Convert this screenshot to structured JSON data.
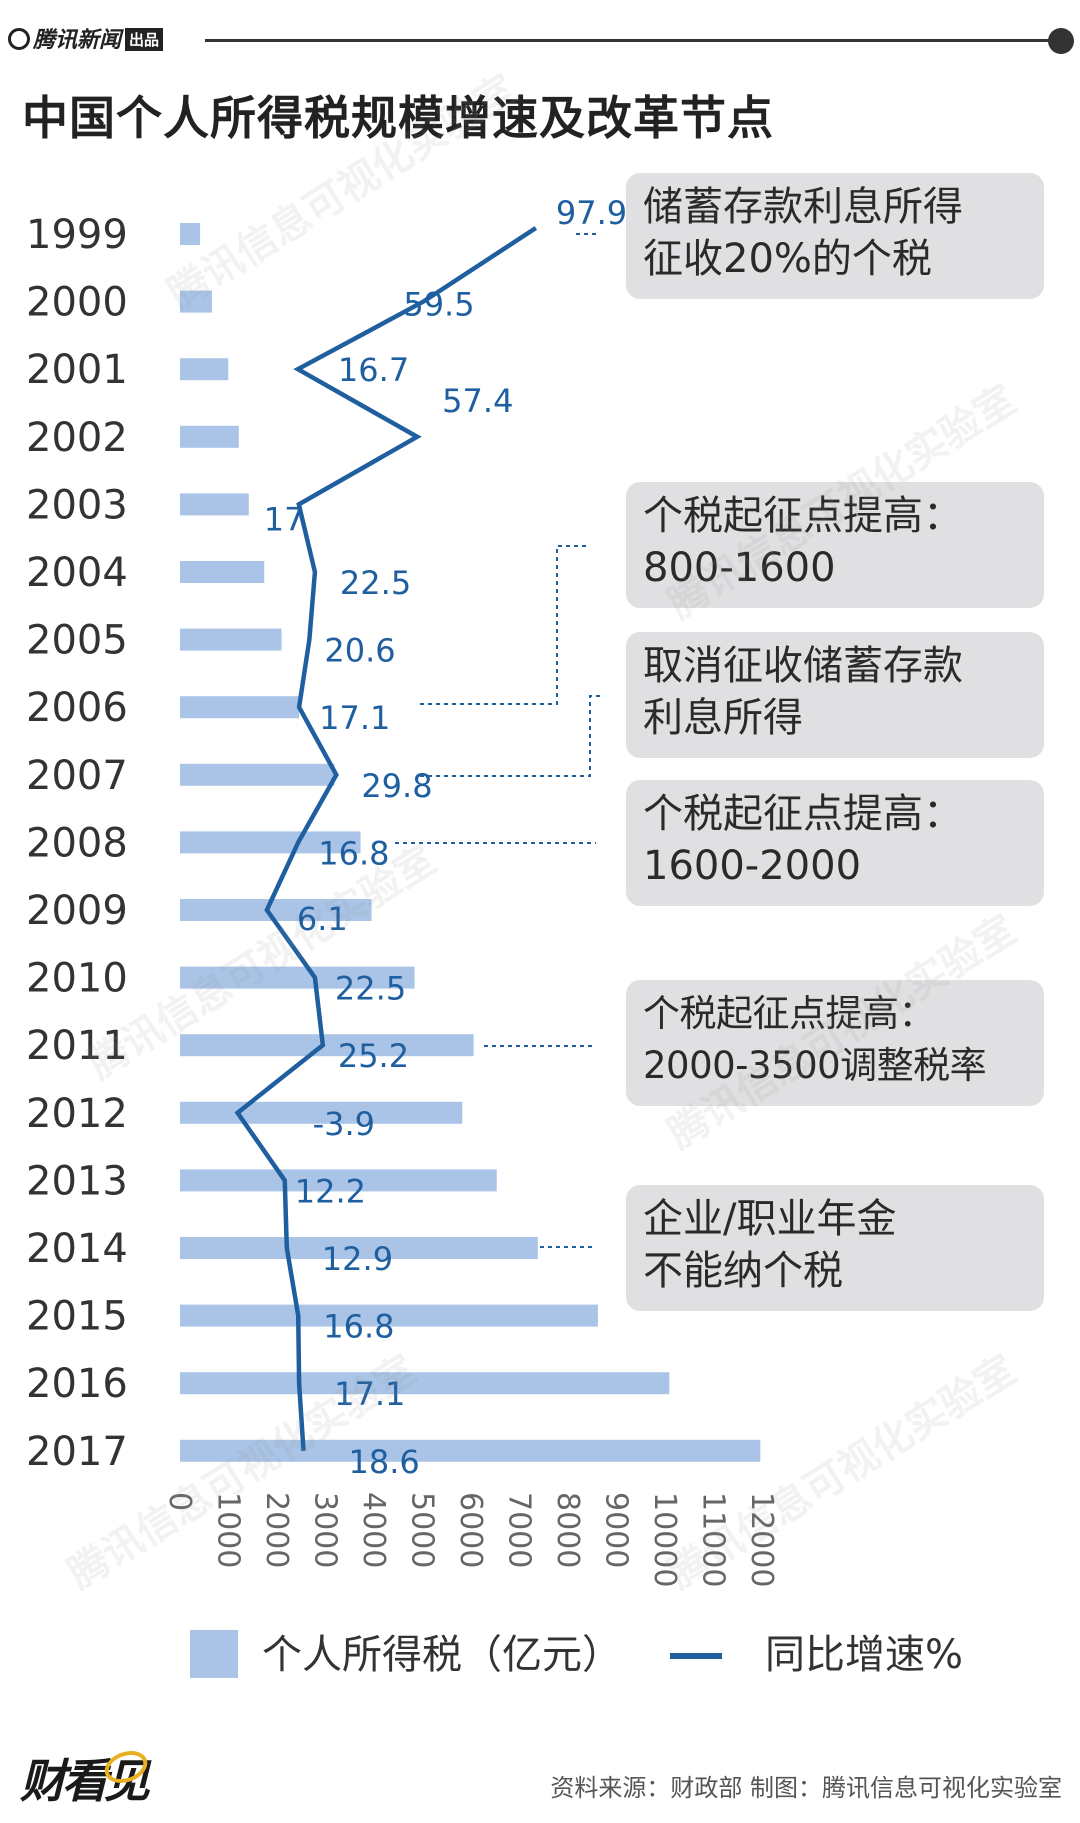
{
  "header": {
    "brand": "腾讯新闻",
    "brand_badge": "出品",
    "title": "中国个人所得税规模增速及改革节点"
  },
  "chart_data": {
    "type": "bar",
    "orientation": "horizontal",
    "title": "中国个人所得税规模增速及改革节点",
    "categories": [
      "1999",
      "2000",
      "2001",
      "2002",
      "2003",
      "2004",
      "2005",
      "2006",
      "2007",
      "2008",
      "2009",
      "2010",
      "2011",
      "2012",
      "2013",
      "2014",
      "2015",
      "2016",
      "2017"
    ],
    "series": [
      {
        "name": "个人所得税（亿元）",
        "type": "bar",
        "color": "#a9c4e6",
        "values": [
          414,
          660,
          995,
          1212,
          1418,
          1737,
          2094,
          2454,
          3186,
          3722,
          3949,
          4837,
          6054,
          5820,
          6531,
          7377,
          8617,
          10089,
          11966
        ]
      },
      {
        "name": "同比增速%",
        "type": "line",
        "color": "#1f5fa0",
        "values": [
          97.9,
          59.5,
          16.7,
          57.4,
          17,
          22.5,
          20.6,
          17.1,
          29.8,
          16.8,
          6.1,
          22.5,
          25.2,
          -3.9,
          12.2,
          12.9,
          16.8,
          17.1,
          18.6
        ],
        "labels": [
          "97.9",
          "59.5",
          "16.7",
          "57.4",
          "17",
          "22.5",
          "20.6",
          "17.1",
          "29.8",
          "16.8",
          "6.1",
          "22.5",
          "25.2",
          "-3.9",
          "12.2",
          "12.9",
          "16.8",
          "17.1",
          "18.6"
        ]
      }
    ],
    "x_ticks": [
      "0",
      "1000",
      "2000",
      "3000",
      "4000",
      "5000",
      "6000",
      "7000",
      "8000",
      "9000",
      "10000",
      "11000",
      "12000"
    ],
    "xlim": [
      0,
      12000
    ],
    "grid": false,
    "legend": "bottom",
    "annotations": [
      {
        "year": "1999",
        "text": "储蓄存款利息所得\n征收20%的个税"
      },
      {
        "year": "2006",
        "text": "个税起征点提高：\n800-1600"
      },
      {
        "year": "2007",
        "text": "取消征收储蓄存款\n利息所得"
      },
      {
        "year": "2008",
        "text": "个税起征点提高：\n1600-2000"
      },
      {
        "year": "2011",
        "text": "个税起征点提高：\n2000-3500调整税率"
      },
      {
        "year": "2014",
        "text": "企业/职业年金\n不能纳个税"
      }
    ]
  },
  "legend": {
    "bar_label": "个人所得税（亿元）",
    "line_label": "同比增速%"
  },
  "footer": {
    "logo": "财看见",
    "source": "资料来源：财政部 制图：腾讯信息可视化实验室"
  },
  "watermark": "腾讯信息可视化实验室"
}
